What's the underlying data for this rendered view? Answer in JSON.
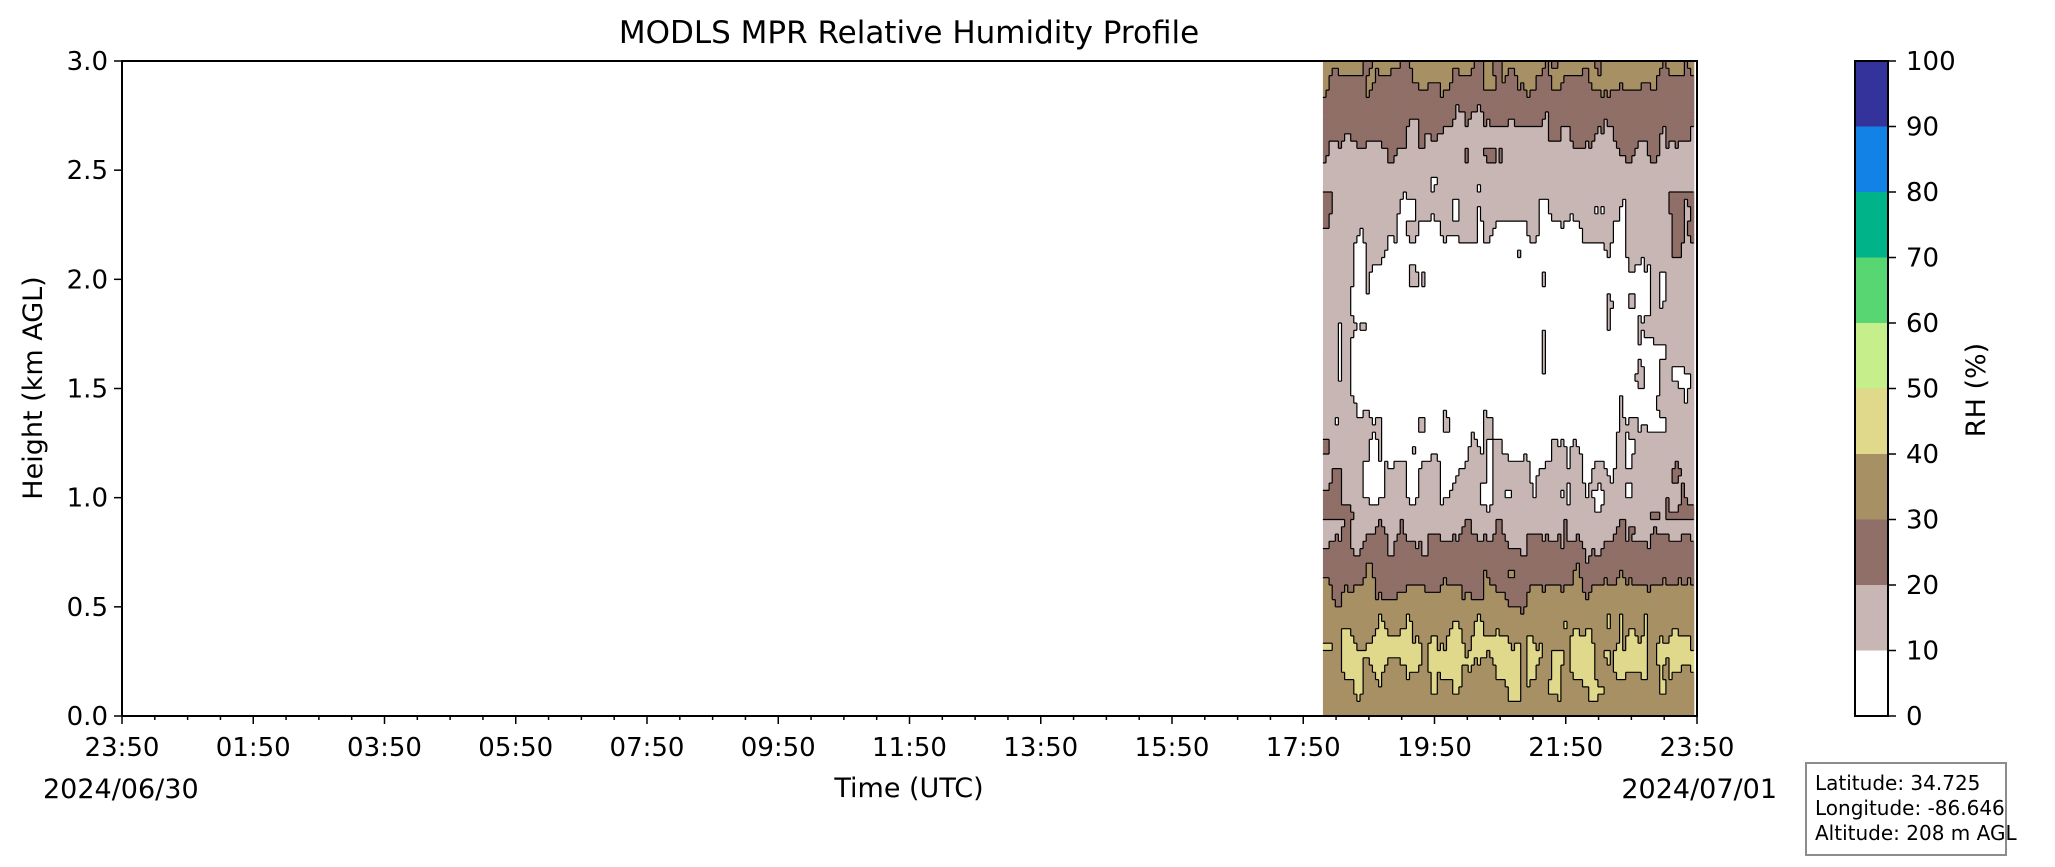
{
  "chart_data": {
    "type": "heatmap",
    "subtype": "filled-contour",
    "title": "MODLS MPR Relative Humidity Profile",
    "xlabel": "Time (UTC)",
    "ylabel": "Height (km AGL)",
    "x_start_date": "2024/06/30",
    "x_end_date": "2024/07/01",
    "x_range_hours": [
      0,
      24
    ],
    "x_tick_hours": [
      0,
      2,
      4,
      6,
      8,
      10,
      12,
      14,
      16,
      18,
      20,
      22,
      24
    ],
    "x_tick_labels": [
      "23:50",
      "01:50",
      "03:50",
      "05:50",
      "07:50",
      "09:50",
      "11:50",
      "13:50",
      "15:50",
      "17:50",
      "19:50",
      "21:50",
      "23:50"
    ],
    "ylim": [
      0,
      3
    ],
    "y_ticks": [
      0.0,
      0.5,
      1.0,
      1.5,
      2.0,
      2.5,
      3.0
    ],
    "y_tick_labels": [
      "0.0",
      "0.5",
      "1.0",
      "1.5",
      "2.0",
      "2.5",
      "3.0"
    ],
    "data_x_range_hours": [
      18.3,
      23.95
    ],
    "colorbar": {
      "label": "RH (%)",
      "levels": [
        0,
        10,
        20,
        30,
        40,
        50,
        60,
        70,
        80,
        90,
        100
      ],
      "tick_labels": [
        "0",
        "10",
        "20",
        "30",
        "40",
        "50",
        "60",
        "70",
        "80",
        "90",
        "100"
      ],
      "colors": [
        "#ffffff",
        "#c8b6b4",
        "#8f6f67",
        "#a89065",
        "#e0d88a",
        "#c6ee8b",
        "#57d672",
        "#00b389",
        "#1382e6",
        "#33339b"
      ]
    },
    "profile": [
      {
        "height_km": 0.0,
        "rh_percent": 35
      },
      {
        "height_km": 0.3,
        "rh_percent": 42
      },
      {
        "height_km": 0.7,
        "rh_percent": 25
      },
      {
        "height_km": 1.0,
        "rh_percent": 12
      },
      {
        "height_km": 1.5,
        "rh_percent": 5
      },
      {
        "height_km": 2.0,
        "rh_percent": 6
      },
      {
        "height_km": 2.5,
        "rh_percent": 15
      },
      {
        "height_km": 2.8,
        "rh_percent": 25
      },
      {
        "height_km": 3.0,
        "rh_percent": 33
      }
    ]
  },
  "station_info": {
    "latitude": "Latitude: 34.725",
    "longitude": "Longitude: -86.646",
    "altitude": "Altitude: 208 m AGL"
  }
}
